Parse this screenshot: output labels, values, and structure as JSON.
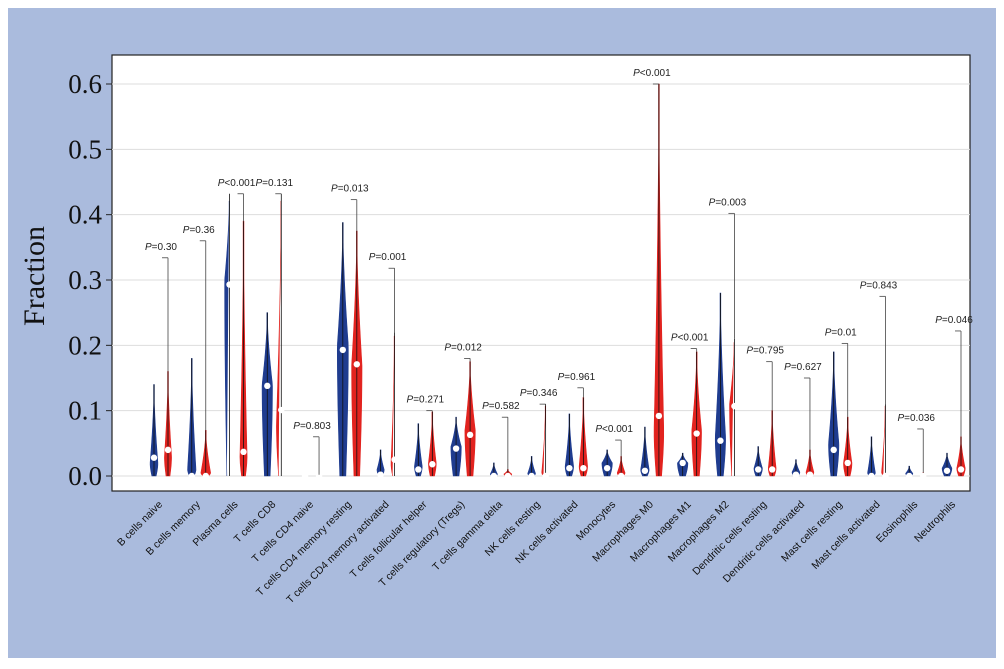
{
  "chart_data": {
    "type": "violin",
    "ylabel": "Fraction",
    "ylim": [
      0,
      0.62
    ],
    "yticks": [
      0.0,
      0.1,
      0.2,
      0.3,
      0.4,
      0.5,
      0.6
    ],
    "ytick_labels": [
      "0.0",
      "0.1",
      "0.2",
      "0.3",
      "0.4",
      "0.5",
      "0.6"
    ],
    "grid": true,
    "colors": {
      "frame_background": "#aabbdd",
      "plot_background": "#ffffff",
      "group1": "#1f3c8f",
      "group2": "#e2231f",
      "median_dot": "#ffffff",
      "grid": "#dddddd"
    },
    "categories": [
      {
        "label": "B cells naive",
        "p": "=0.30",
        "bracket_top": 0.334,
        "g1": {
          "max": 0.14,
          "median": 0.028,
          "peak": 0.02,
          "width": 0.6
        },
        "g2": {
          "max": 0.16,
          "median": 0.04,
          "peak": 0.03,
          "width": 0.55
        }
      },
      {
        "label": "B cells memory",
        "p": "=0.36",
        "bracket_top": 0.36,
        "g1": {
          "max": 0.18,
          "median": 0.0,
          "peak": 0.01,
          "width": 0.65
        },
        "g2": {
          "max": 0.07,
          "median": 0.0,
          "peak": 0.005,
          "width": 0.75
        }
      },
      {
        "label": "Plasma cells",
        "p": "<0.001",
        "bracket_top": 0.432,
        "g1": {
          "max": 0.432,
          "median": 0.293,
          "peak": 0.3,
          "width": 0.75
        },
        "g2": {
          "max": 0.39,
          "median": 0.037,
          "peak": 0.03,
          "width": 0.55
        }
      },
      {
        "label": "T cells CD8",
        "p": "=0.131",
        "bracket_top": 0.432,
        "g1": {
          "max": 0.25,
          "median": 0.138,
          "peak": 0.14,
          "width": 0.8
        },
        "g2": {
          "max": 0.432,
          "median": 0.101,
          "peak": 0.08,
          "width": 0.75
        }
      },
      {
        "label": "T cells CD4 naive",
        "p": "=0.803",
        "bracket_top": 0.06,
        "g1": {
          "max": 0.002,
          "median": 0.0,
          "peak": 0.0,
          "width": 0.25
        },
        "g2": {
          "max": 0.002,
          "median": 0.0,
          "peak": 0.0,
          "width": 0.25
        }
      },
      {
        "label": "T cells CD4 memory resting",
        "p": "=0.013",
        "bracket_top": 0.423,
        "g1": {
          "max": 0.388,
          "median": 0.193,
          "peak": 0.2,
          "width": 0.85
        },
        "g2": {
          "max": 0.375,
          "median": 0.171,
          "peak": 0.17,
          "width": 0.8
        }
      },
      {
        "label": "T cells CD4 memory activated",
        "p": "=0.001",
        "bracket_top": 0.318,
        "g1": {
          "max": 0.04,
          "median": 0.002,
          "peak": 0.01,
          "width": 0.55
        },
        "g2": {
          "max": 0.22,
          "median": 0.025,
          "peak": 0.02,
          "width": 0.55
        }
      },
      {
        "label": "T cells follicular helper",
        "p": "=0.271",
        "bracket_top": 0.1,
        "g1": {
          "max": 0.08,
          "median": 0.01,
          "peak": 0.015,
          "width": 0.6
        },
        "g2": {
          "max": 0.098,
          "median": 0.018,
          "peak": 0.02,
          "width": 0.6
        }
      },
      {
        "label": "T cells regulatory (Tregs)",
        "p": "=0.012",
        "bracket_top": 0.18,
        "g1": {
          "max": 0.09,
          "median": 0.042,
          "peak": 0.045,
          "width": 0.8
        },
        "g2": {
          "max": 0.175,
          "median": 0.063,
          "peak": 0.07,
          "width": 0.8
        }
      },
      {
        "label": "T cells gamma delta",
        "p": "=0.582",
        "bracket_top": 0.09,
        "g1": {
          "max": 0.02,
          "median": 0.0,
          "peak": 0.003,
          "width": 0.55
        },
        "g2": {
          "max": 0.01,
          "median": 0.0,
          "peak": 0.003,
          "width": 0.6
        }
      },
      {
        "label": "NK cells resting",
        "p": "=0.346",
        "bracket_top": 0.11,
        "g1": {
          "max": 0.03,
          "median": 0.0,
          "peak": 0.004,
          "width": 0.6
        },
        "g2": {
          "max": 0.11,
          "median": 0.0,
          "peak": 0.005,
          "width": 0.6
        }
      },
      {
        "label": "NK cells activated",
        "p": "=0.961",
        "bracket_top": 0.135,
        "g1": {
          "max": 0.095,
          "median": 0.012,
          "peak": 0.015,
          "width": 0.65
        },
        "g2": {
          "max": 0.12,
          "median": 0.012,
          "peak": 0.015,
          "width": 0.65
        }
      },
      {
        "label": "Monocytes",
        "p": "<0.001",
        "bracket_top": 0.055,
        "g1": {
          "max": 0.04,
          "median": 0.012,
          "peak": 0.02,
          "width": 0.8
        },
        "g2": {
          "max": 0.03,
          "median": 0.0,
          "peak": 0.005,
          "width": 0.6
        }
      },
      {
        "label": "Macrophages M0",
        "p": "<0.001",
        "bracket_top": 0.6,
        "g1": {
          "max": 0.075,
          "median": 0.008,
          "peak": 0.01,
          "width": 0.65
        },
        "g2": {
          "max": 0.6,
          "median": 0.092,
          "peak": 0.07,
          "width": 0.75
        }
      },
      {
        "label": "Macrophages M1",
        "p": "<0.001",
        "bracket_top": 0.195,
        "g1": {
          "max": 0.035,
          "median": 0.02,
          "peak": 0.02,
          "width": 0.8
        },
        "g2": {
          "max": 0.19,
          "median": 0.065,
          "peak": 0.07,
          "width": 0.75
        }
      },
      {
        "label": "Macrophages M2",
        "p": "=0.003",
        "bracket_top": 0.402,
        "g1": {
          "max": 0.28,
          "median": 0.054,
          "peak": 0.06,
          "width": 0.8
        },
        "g2": {
          "max": 0.21,
          "median": 0.107,
          "peak": 0.11,
          "width": 0.75
        }
      },
      {
        "label": "Dendritic cells resting",
        "p": "=0.795",
        "bracket_top": 0.175,
        "g1": {
          "max": 0.045,
          "median": 0.01,
          "peak": 0.012,
          "width": 0.65
        },
        "g2": {
          "max": 0.1,
          "median": 0.01,
          "peak": 0.012,
          "width": 0.6
        }
      },
      {
        "label": "Dendritic cells activated",
        "p": "=0.627",
        "bracket_top": 0.15,
        "g1": {
          "max": 0.025,
          "median": 0.002,
          "peak": 0.006,
          "width": 0.6
        },
        "g2": {
          "max": 0.04,
          "median": 0.002,
          "peak": 0.006,
          "width": 0.6
        }
      },
      {
        "label": "Mast cells resting",
        "p": "=0.01",
        "bracket_top": 0.203,
        "g1": {
          "max": 0.19,
          "median": 0.04,
          "peak": 0.05,
          "width": 0.8
        },
        "g2": {
          "max": 0.09,
          "median": 0.02,
          "peak": 0.02,
          "width": 0.65
        }
      },
      {
        "label": "Mast cells activated",
        "p": "=0.843",
        "bracket_top": 0.275,
        "g1": {
          "max": 0.06,
          "median": 0.0,
          "peak": 0.005,
          "width": 0.6
        },
        "g2": {
          "max": 0.11,
          "median": 0.0,
          "peak": 0.006,
          "width": 0.6
        }
      },
      {
        "label": "Eosinophils",
        "p": "=0.036",
        "bracket_top": 0.072,
        "g1": {
          "max": 0.015,
          "median": 0.0,
          "peak": 0.004,
          "width": 0.55
        },
        "g2": {
          "max": 0.005,
          "median": 0.0,
          "peak": 0.0,
          "width": 0.35
        }
      },
      {
        "label": "Neutrophils",
        "p": "=0.046",
        "bracket_top": 0.222,
        "g1": {
          "max": 0.035,
          "median": 0.008,
          "peak": 0.012,
          "width": 0.75
        },
        "g2": {
          "max": 0.06,
          "median": 0.01,
          "peak": 0.012,
          "width": 0.65
        }
      }
    ]
  }
}
